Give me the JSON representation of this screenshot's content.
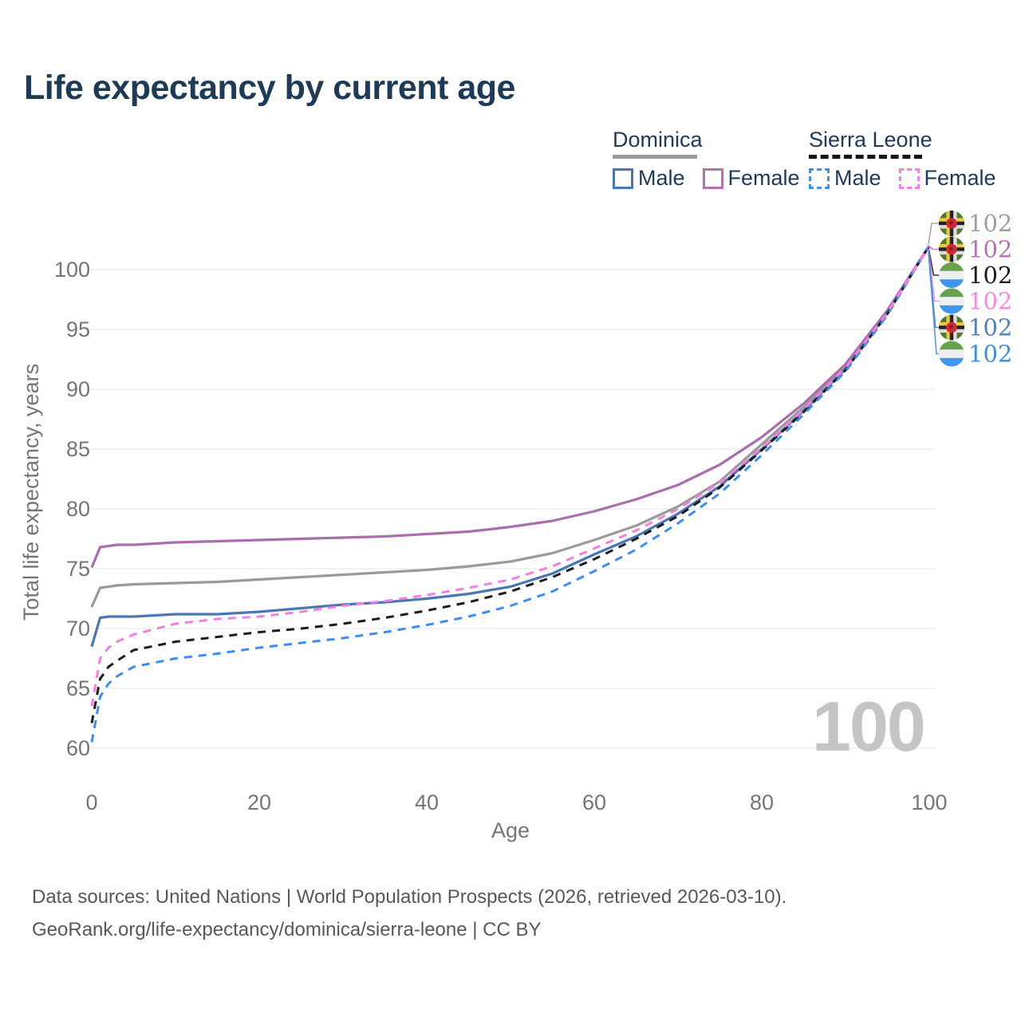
{
  "title": "Life expectancy by current age",
  "watermark": "100",
  "legend": {
    "groups": [
      {
        "name": "Dominica",
        "line_style": "solid",
        "underline_color": "#9a9a9a",
        "items": [
          {
            "label": "Male",
            "color": "#4a77b4",
            "dashed": false
          },
          {
            "label": "Female",
            "color": "#b273ae",
            "dashed": false
          }
        ]
      },
      {
        "name": "Sierra Leone",
        "line_style": "dashed",
        "underline_color": "#161616",
        "items": [
          {
            "label": "Male",
            "color": "#3f8ef0",
            "dashed": true
          },
          {
            "label": "Female",
            "color": "#fb7ce8",
            "dashed": true
          }
        ]
      }
    ]
  },
  "chart_data": {
    "type": "line",
    "title": "Life expectancy by current age",
    "xlabel": "Age",
    "ylabel": "Total life expectancy, years",
    "xlim": [
      0,
      100
    ],
    "ylim": [
      60,
      102
    ],
    "x_ticks": [
      0,
      20,
      40,
      60,
      80,
      100
    ],
    "y_ticks": [
      60,
      65,
      70,
      75,
      80,
      85,
      90,
      95,
      100
    ],
    "grid": "horizontal",
    "legend_position": "top-right",
    "x": [
      0,
      1,
      2,
      3,
      5,
      10,
      15,
      20,
      25,
      30,
      35,
      40,
      45,
      50,
      55,
      60,
      65,
      70,
      75,
      80,
      85,
      90,
      95,
      100
    ],
    "series": [
      {
        "name": "Dominica (both sexes)",
        "country": "Dominica",
        "color": "#9a9a9a",
        "dashed": false,
        "values": [
          71.8,
          73.4,
          73.5,
          73.6,
          73.7,
          73.8,
          73.9,
          74.1,
          74.3,
          74.5,
          74.7,
          74.9,
          75.2,
          75.6,
          76.3,
          77.4,
          78.6,
          80.2,
          82.3,
          85.4,
          88.5,
          91.9,
          96.5,
          102
        ]
      },
      {
        "name": "Dominica Female",
        "country": "Dominica",
        "color": "#a96fad",
        "dashed": false,
        "values": [
          75.1,
          76.8,
          76.9,
          77.0,
          77.0,
          77.2,
          77.3,
          77.4,
          77.5,
          77.6,
          77.7,
          77.9,
          78.1,
          78.5,
          79.0,
          79.8,
          80.8,
          82.0,
          83.7,
          86.0,
          88.8,
          92.1,
          96.6,
          102
        ]
      },
      {
        "name": "Dominica Male",
        "country": "Dominica",
        "color": "#4a77b4",
        "dashed": false,
        "values": [
          68.5,
          70.9,
          71.0,
          71.0,
          71.0,
          71.2,
          71.2,
          71.4,
          71.7,
          72.0,
          72.2,
          72.5,
          72.9,
          73.5,
          74.6,
          76.2,
          77.7,
          79.6,
          81.9,
          85.0,
          88.2,
          91.7,
          96.4,
          102
        ]
      },
      {
        "name": "Sierra Leone (both sexes)",
        "country": "Sierra Leone",
        "color": "#1c1c1c",
        "dashed": true,
        "values": [
          62.1,
          65.8,
          66.8,
          67.3,
          68.2,
          68.9,
          69.3,
          69.7,
          70.0,
          70.4,
          70.9,
          71.5,
          72.2,
          73.1,
          74.3,
          75.8,
          77.5,
          79.4,
          81.8,
          84.9,
          88.1,
          91.6,
          96.3,
          102
        ]
      },
      {
        "name": "Sierra Leone Male",
        "country": "Sierra Leone",
        "color": "#3a8ef5",
        "dashed": true,
        "values": [
          60.5,
          64.3,
          65.4,
          66.0,
          66.8,
          67.5,
          67.9,
          68.4,
          68.8,
          69.2,
          69.7,
          70.3,
          71.0,
          71.9,
          73.1,
          74.8,
          76.6,
          78.8,
          81.3,
          84.5,
          87.9,
          91.5,
          96.2,
          102
        ]
      },
      {
        "name": "Sierra Leone Female",
        "country": "Sierra Leone",
        "color": "#f97ce0",
        "dashed": true,
        "values": [
          63.5,
          67.5,
          68.4,
          68.9,
          69.5,
          70.4,
          70.8,
          71.0,
          71.4,
          71.9,
          72.3,
          72.8,
          73.4,
          74.1,
          75.2,
          76.7,
          78.2,
          80.0,
          82.2,
          85.1,
          88.3,
          91.8,
          96.4,
          102
        ]
      }
    ],
    "end_callouts": [
      {
        "flag": "dominica",
        "label": "102",
        "color": "#9e9e9e"
      },
      {
        "flag": "dominica",
        "label": "102",
        "color": "#b573b5"
      },
      {
        "flag": "sierra-leone",
        "label": "102",
        "color": "#1c1c1c"
      },
      {
        "flag": "sierra-leone",
        "label": "102",
        "color": "#ff85e3"
      },
      {
        "flag": "dominica",
        "label": "102",
        "color": "#4f81bd"
      },
      {
        "flag": "sierra-leone",
        "label": "102",
        "color": "#3d8de8"
      }
    ]
  },
  "footer": {
    "line1": "Data sources: United Nations | World Population Prospects (2026, retrieved 2026-03-10).",
    "line2": "GeoRank.org/life-expectancy/dominica/sierra-leone | CC BY"
  }
}
